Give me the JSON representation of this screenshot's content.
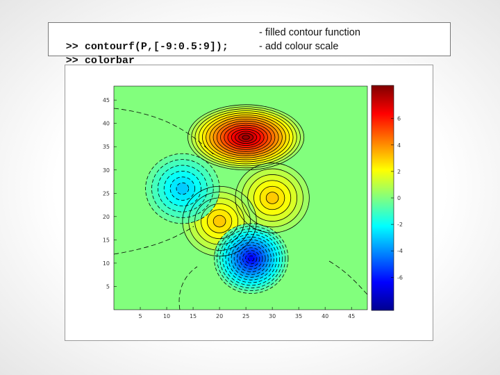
{
  "commands": [
    {
      "prompt": ">>",
      "code": "contourf(P,[-9:0.5:9]);",
      "comment": "- filled contour function"
    },
    {
      "prompt": ">>",
      "code": "colorbar",
      "comment": "- add colour scale"
    }
  ],
  "chart_data": {
    "type": "heatmap",
    "subtype": "filled-contour",
    "xlim": [
      0,
      48
    ],
    "ylim": [
      0,
      48
    ],
    "x_ticks": [
      5,
      10,
      15,
      20,
      25,
      30,
      35,
      40,
      45
    ],
    "y_ticks": [
      5,
      10,
      15,
      20,
      25,
      30,
      35,
      40,
      45
    ],
    "x_tick_labels": [
      "5",
      "10",
      "15",
      "20",
      "25",
      "30",
      "35",
      "40",
      "45"
    ],
    "y_tick_labels": [
      "5",
      "10",
      "15",
      "20",
      "25",
      "30",
      "35",
      "40",
      "45"
    ],
    "contour_levels": {
      "start": -9,
      "step": 0.5,
      "stop": 9
    },
    "colormap": "jet",
    "colorbar": {
      "range": [
        -8.5,
        8.5
      ],
      "ticks": [
        -6,
        -4,
        -2,
        0,
        2,
        4,
        6
      ],
      "tick_labels": [
        "-6",
        "-4",
        "-2",
        "0",
        "2",
        "4",
        "6"
      ]
    },
    "features": [
      {
        "kind": "peak",
        "x": 25,
        "y": 37,
        "value": 8.1
      },
      {
        "kind": "peak",
        "x": 30,
        "y": 24,
        "value": 3.0
      },
      {
        "kind": "peak",
        "x": 20,
        "y": 19,
        "value": 3.3
      },
      {
        "kind": "trough",
        "x": 13,
        "y": 26,
        "value": -3.2
      },
      {
        "kind": "trough",
        "x": 26,
        "y": 11,
        "value": -6.5
      }
    ]
  }
}
